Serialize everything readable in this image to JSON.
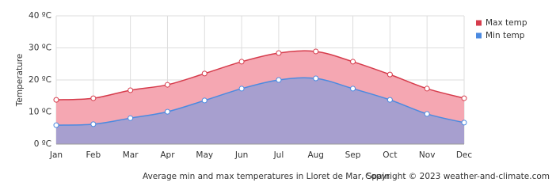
{
  "chart_data": {
    "type": "area",
    "title": "Average min and max temperatures in Lloret de Mar, Spain",
    "source": "Copyright © 2023  weather-and-climate.com",
    "y_label": "Temperature",
    "categories": [
      "Jan",
      "Feb",
      "Mar",
      "Apr",
      "May",
      "Jun",
      "Jul",
      "Aug",
      "Sep",
      "Oct",
      "Nov",
      "Dec"
    ],
    "series": [
      {
        "name": "Max temp",
        "color": "#d63c4c",
        "fill": "#f5a7b2",
        "values": [
          13.8,
          14.3,
          16.8,
          18.5,
          22,
          25.7,
          28.4,
          28.9,
          25.7,
          21.7,
          17.3,
          14.3
        ]
      },
      {
        "name": "Min temp",
        "color": "#4b8ae0",
        "fill": "#a79fcf",
        "values": [
          5.9,
          6.2,
          8.1,
          10.1,
          13.6,
          17.3,
          20,
          20.5,
          17.3,
          13.8,
          9.4,
          6.7
        ]
      }
    ],
    "ylim": [
      0,
      40
    ],
    "yticks": [
      {
        "value": 0,
        "label": "0 ºC"
      },
      {
        "value": 10,
        "label": "10 ºC"
      },
      {
        "value": 20,
        "label": "20 ºC"
      },
      {
        "value": 30,
        "label": "30 ºC"
      },
      {
        "value": 40,
        "label": "40 ºC"
      }
    ],
    "grid": true,
    "legend": "top-right"
  }
}
